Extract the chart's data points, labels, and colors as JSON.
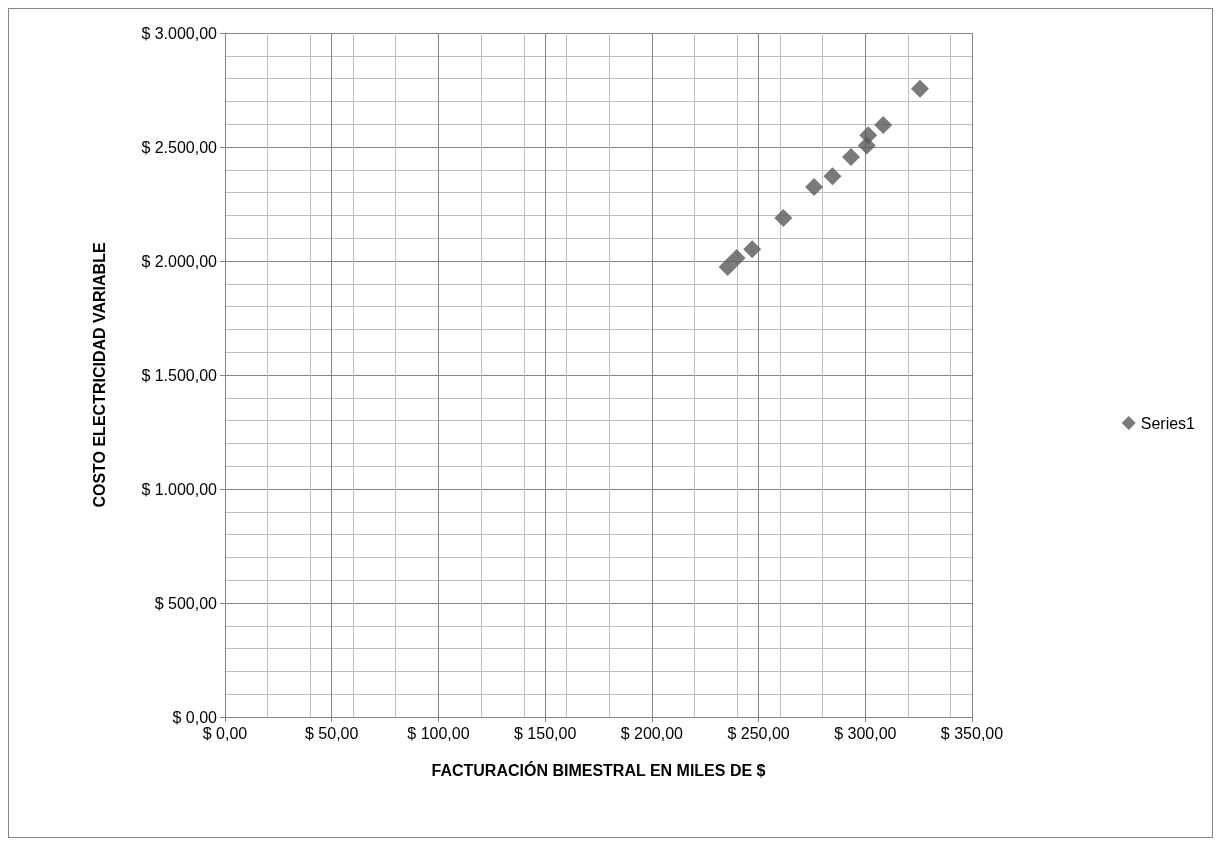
{
  "chart_data": {
    "type": "scatter",
    "xlabel": "FACTURACIÓN BIMESTRAL EN MILES DE $",
    "ylabel": "COSTO ELECTRICIDAD VARIABLE",
    "series": [
      {
        "name": "Series1",
        "color": "#595959",
        "x": [
          235.5,
          239.7,
          247,
          261.6,
          276,
          284.6,
          293.3,
          300.7,
          301.4,
          308.4,
          325.6
        ],
        "values": [
          1974,
          2013,
          2052,
          2189,
          2325,
          2372,
          2456,
          2507,
          2551,
          2597,
          2756
        ]
      }
    ],
    "xlim": [
      0,
      350
    ],
    "xticks": [
      {
        "value": 0,
        "label": "$ 0,00"
      },
      {
        "value": 50,
        "label": "$ 50,00"
      },
      {
        "value": 100,
        "label": "$ 100,00"
      },
      {
        "value": 150,
        "label": "$ 150,00"
      },
      {
        "value": 200,
        "label": "$ 200,00"
      },
      {
        "value": 250,
        "label": "$ 250,00"
      },
      {
        "value": 300,
        "label": "$ 300,00"
      },
      {
        "value": 350,
        "label": "$ 350,00"
      }
    ],
    "ylim": [
      0,
      3000
    ],
    "yticks": [
      {
        "value": 0,
        "label": "$ 0,00"
      },
      {
        "value": 500,
        "label": "$ 500,00"
      },
      {
        "value": 1000,
        "label": "$ 1.000,00"
      },
      {
        "value": 1500,
        "label": "$ 1.500,00"
      },
      {
        "value": 2000,
        "label": "$ 2.000,00"
      },
      {
        "value": 2500,
        "label": "$ 2.500,00"
      },
      {
        "value": 3000,
        "label": "$ 3.000,00"
      }
    ],
    "grid": true,
    "legend": "right",
    "marker": "diamond"
  }
}
